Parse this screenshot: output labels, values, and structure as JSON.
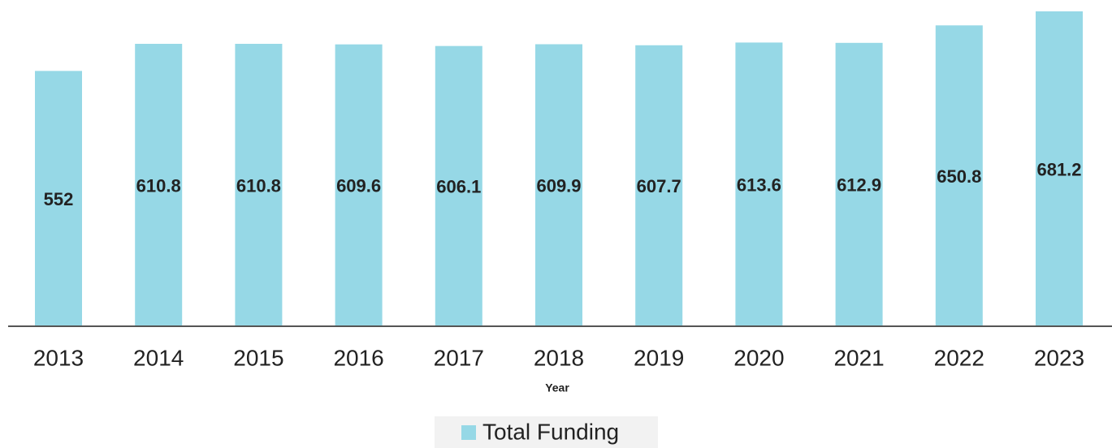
{
  "chart_data": {
    "type": "bar",
    "x_label": "Year",
    "categories": [
      "2013",
      "2014",
      "2015",
      "2016",
      "2017",
      "2018",
      "2019",
      "2020",
      "2021",
      "2022",
      "2023"
    ],
    "series": [
      {
        "name": "Total Funding",
        "color": "#96d8e6",
        "values": [
          552,
          610.8,
          610.8,
          609.6,
          606.1,
          609.9,
          607.7,
          613.6,
          612.9,
          650.8,
          681.2
        ]
      }
    ],
    "legend": "bottom"
  }
}
